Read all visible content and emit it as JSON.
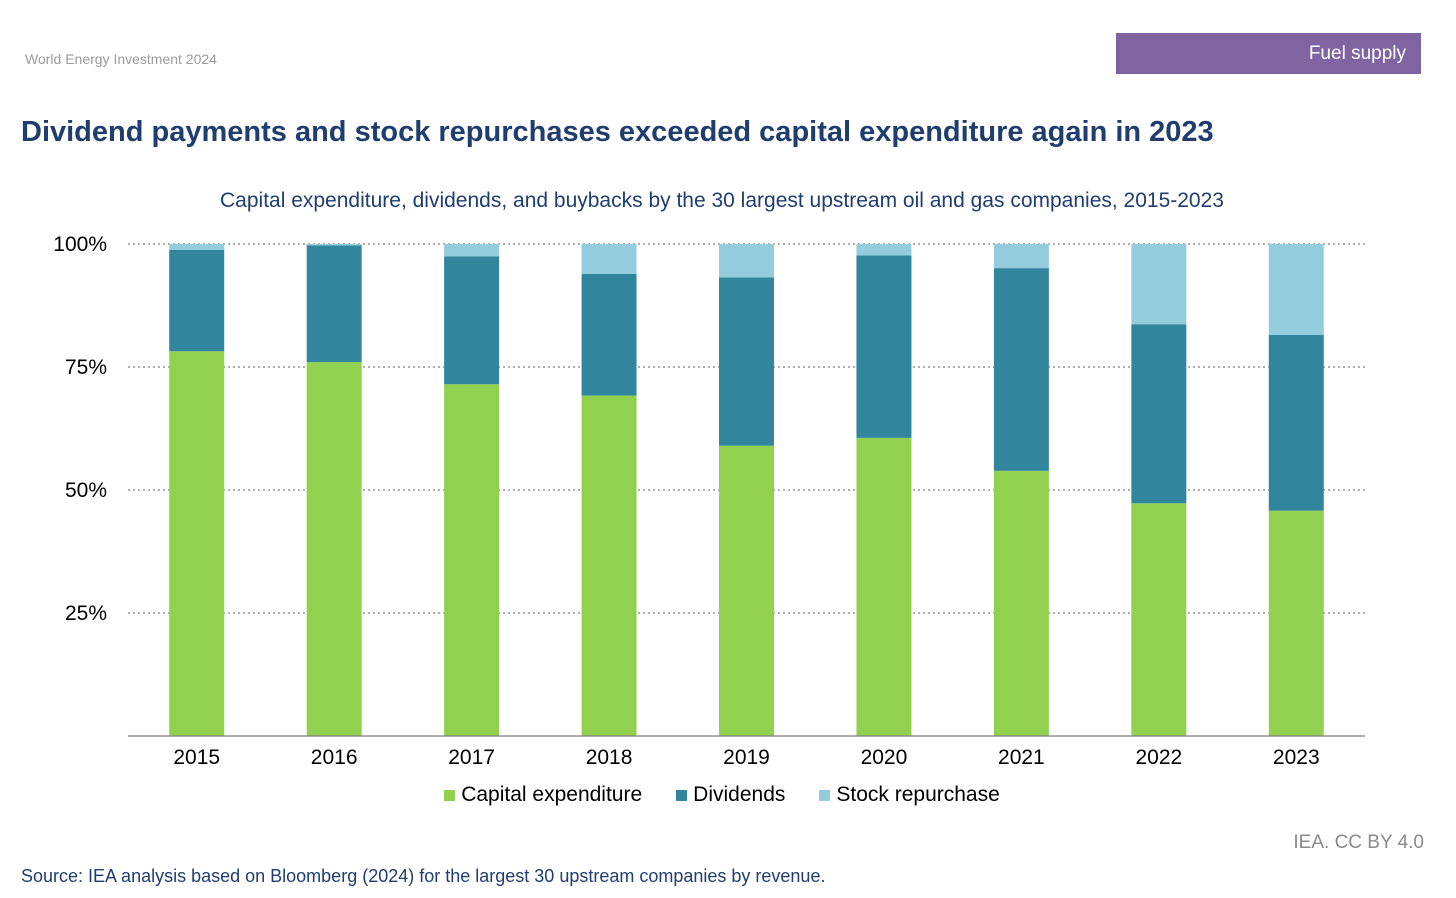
{
  "header": {
    "report_name": "World Energy Investment 2024",
    "section": "Fuel supply",
    "section_color": "#8064a2"
  },
  "headline": "Dividend payments and stock repurchases exceeded capital expenditure again in 2023",
  "footer": {
    "license": "IEA. CC BY 4.0",
    "source": "Source: IEA analysis based on Bloomberg (2024) for the largest 30 upstream companies by revenue."
  },
  "chart_data": {
    "type": "bar",
    "stacked": true,
    "title": "Capital expenditure, dividends, and buybacks by the 30 largest upstream oil and gas companies, 2015-2023",
    "xlabel": "",
    "ylabel": "",
    "categories": [
      "2015",
      "2016",
      "2017",
      "2018",
      "2019",
      "2020",
      "2021",
      "2022",
      "2023"
    ],
    "series": [
      {
        "name": "Capital expenditure",
        "color": "#92d050",
        "values": [
          78.2,
          76.0,
          71.5,
          69.2,
          59.0,
          60.6,
          53.9,
          47.3,
          45.8
        ]
      },
      {
        "name": "Dividends",
        "color": "#31859c",
        "values": [
          20.6,
          23.7,
          26.0,
          24.7,
          34.2,
          37.1,
          41.2,
          36.4,
          35.7
        ]
      },
      {
        "name": "Stock repurchase",
        "color": "#93cddd",
        "values": [
          1.2,
          0.3,
          2.5,
          6.1,
          6.8,
          2.3,
          4.9,
          16.3,
          18.5
        ]
      }
    ],
    "ylim": [
      0,
      100
    ],
    "yticks": [
      25,
      50,
      75,
      100
    ],
    "ytick_labels": [
      "25%",
      "50%",
      "75%",
      "100%"
    ],
    "grid": true,
    "legend_position": "bottom"
  }
}
